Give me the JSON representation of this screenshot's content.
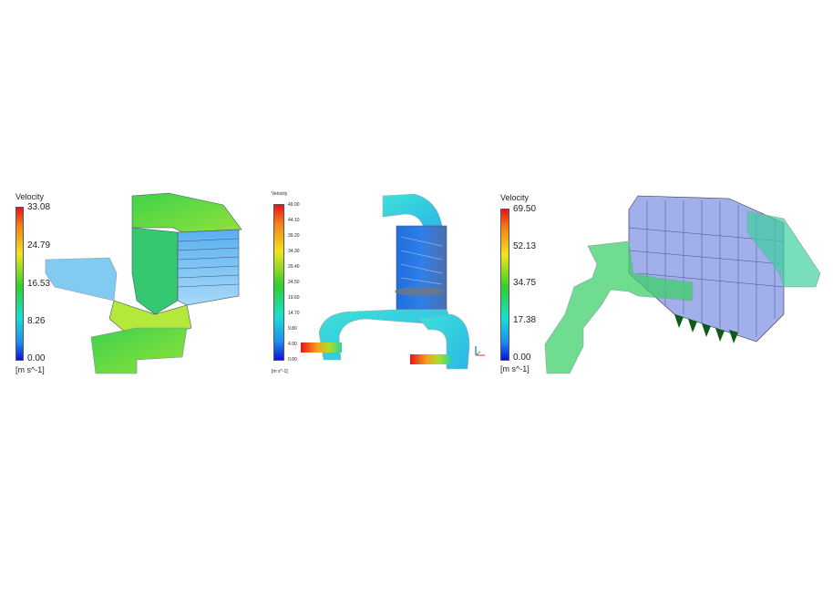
{
  "panels": [
    {
      "legend": {
        "title": "Velocity",
        "ticks": [
          "33.08",
          "24.79",
          "16.53",
          "8.26",
          "0.00"
        ],
        "unit": "[m s^-1]"
      }
    },
    {
      "legend": {
        "title": "Velocity",
        "ticks": [
          "49.00",
          "44.10",
          "39.20",
          "34.30",
          "29.40",
          "24.50",
          "19.60",
          "14.70",
          "9.80",
          "4.90",
          "0.00"
        ],
        "unit": "[m s^-1]"
      }
    },
    {
      "legend": {
        "title": "Velocity",
        "ticks": [
          "69.50",
          "52.13",
          "34.75",
          "17.38",
          "0.00"
        ],
        "unit": "[m s^-1]"
      }
    }
  ],
  "colors": {
    "high": "#e8141a",
    "mid": "#2fd12b",
    "low": "#0a14d8",
    "cyan": "#19e0d2"
  }
}
